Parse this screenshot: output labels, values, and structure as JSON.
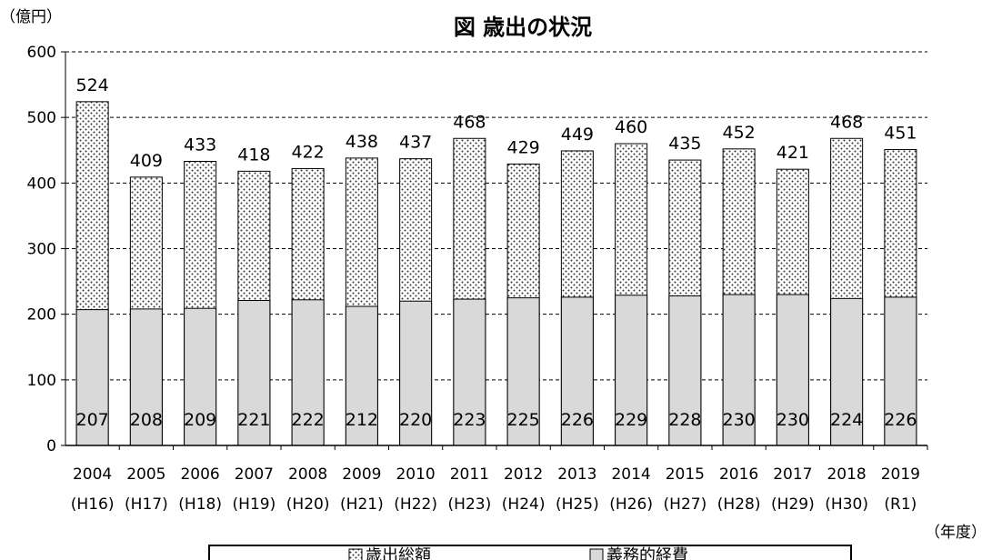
{
  "chart_data": {
    "type": "bar",
    "title": "図 歳出の状況",
    "ylabel": "（億円）",
    "xlabel": "（年度）",
    "ylim": [
      0,
      600
    ],
    "yticks": [
      0,
      100,
      200,
      300,
      400,
      500,
      600
    ],
    "grid": "horizontal dashed",
    "legend_position": "bottom",
    "categories": [
      "2004",
      "2005",
      "2006",
      "2007",
      "2008",
      "2009",
      "2010",
      "2011",
      "2012",
      "2013",
      "2014",
      "2015",
      "2016",
      "2017",
      "2018",
      "2019"
    ],
    "categories_sub": [
      "(H16)",
      "(H17)",
      "(H18)",
      "(H19)",
      "(H20)",
      "(H21)",
      "(H22)",
      "(H23)",
      "(H24)",
      "(H25)",
      "(H26)",
      "(H27)",
      "(H28)",
      "(H29)",
      "(H30)",
      "(R1)"
    ],
    "series": [
      {
        "name": "歳出総額",
        "pattern": "dotted",
        "color": "#ffffff",
        "values": [
          524,
          409,
          433,
          418,
          422,
          438,
          437,
          468,
          429,
          449,
          460,
          435,
          452,
          421,
          468,
          451
        ]
      },
      {
        "name": "義務的経費",
        "pattern": "solid",
        "color": "#d9d9d9",
        "values": [
          207,
          208,
          209,
          221,
          222,
          212,
          220,
          223,
          225,
          226,
          229,
          228,
          230,
          230,
          224,
          226
        ]
      }
    ]
  }
}
